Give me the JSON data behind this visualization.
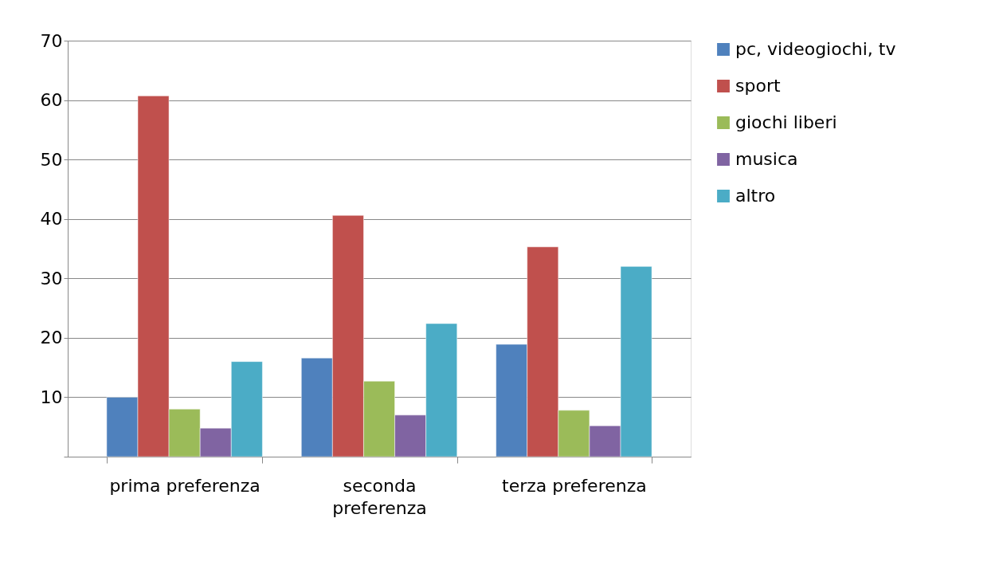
{
  "chart_data": {
    "type": "bar",
    "categories": [
      "prima preferenza",
      "seconda preferenza",
      "terza preferenza"
    ],
    "series": [
      {
        "name": "pc, videogiochi, tv",
        "color": "#4f81bd",
        "values": [
          10,
          16.6,
          18.9
        ]
      },
      {
        "name": "sport",
        "color": "#c0504d",
        "values": [
          60.7,
          40.6,
          35.3
        ]
      },
      {
        "name": "giochi liberi",
        "color": "#9bbb59",
        "values": [
          8,
          12.7,
          7.8
        ]
      },
      {
        "name": "musica",
        "color": "#8064a2",
        "values": [
          4.8,
          7,
          5.2
        ]
      },
      {
        "name": "altro",
        "color": "#4bacc6",
        "values": [
          16,
          22.4,
          32
        ]
      }
    ],
    "ylim": [
      0,
      70
    ],
    "yticks": [
      {
        "value": 0,
        "label": null
      },
      10,
      20,
      30,
      40,
      50,
      60,
      70
    ],
    "grid": "y",
    "legend": "right"
  }
}
